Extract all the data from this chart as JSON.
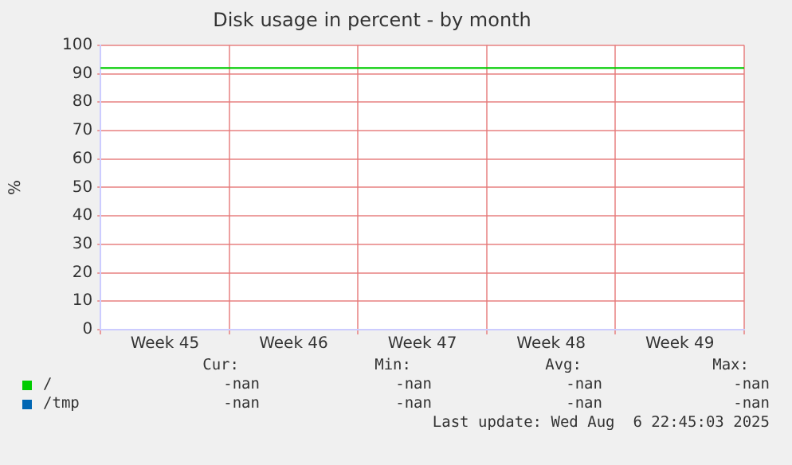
{
  "chart_data": {
    "type": "line",
    "title": "Disk usage in percent - by month",
    "ylabel": "%",
    "categories": [
      "Week 45",
      "Week 46",
      "Week 47",
      "Week 48",
      "Week 49"
    ],
    "ylim": [
      0,
      100
    ],
    "yticks": [
      0,
      10,
      20,
      30,
      40,
      50,
      60,
      70,
      80,
      90,
      100
    ],
    "series": [
      {
        "name": "/",
        "color": "#00cc00",
        "values": [
          null,
          null,
          null,
          null,
          null
        ]
      },
      {
        "name": "/tmp",
        "color": "#0066b3",
        "values": [
          null,
          null,
          null,
          null,
          null
        ]
      }
    ],
    "ref_lines": [
      {
        "axis": "y",
        "value": 92,
        "color": "#00cc00"
      }
    ],
    "grid": true,
    "legend": "bottom",
    "annotations": [
      "Cur:",
      "Min:",
      "Avg:",
      "Max:",
      "-nan",
      "-nan",
      "-nan",
      "-nan",
      "-nan",
      "-nan",
      "-nan",
      "-nan",
      "Last update: Wed Aug  6 22:45:03 2025"
    ]
  }
}
